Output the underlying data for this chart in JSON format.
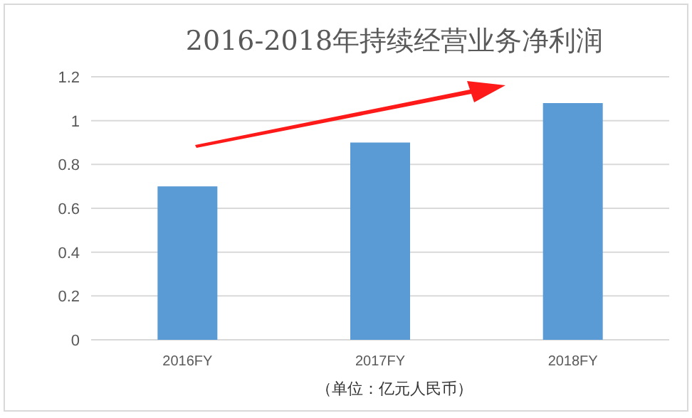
{
  "chart_data": {
    "type": "bar",
    "title": "2016-2018年持续经营业务净利润",
    "categories": [
      "2016FY",
      "2017FY",
      "2018FY"
    ],
    "values": [
      0.7,
      0.9,
      1.08
    ],
    "color": "#5b9bd5",
    "ylim": [
      0,
      1.2
    ],
    "yticks": [
      0,
      0.2,
      0.4,
      0.6,
      0.8,
      1,
      1.2
    ],
    "grid": "y",
    "annotations": [
      "（单位：亿元人民币）"
    ]
  }
}
